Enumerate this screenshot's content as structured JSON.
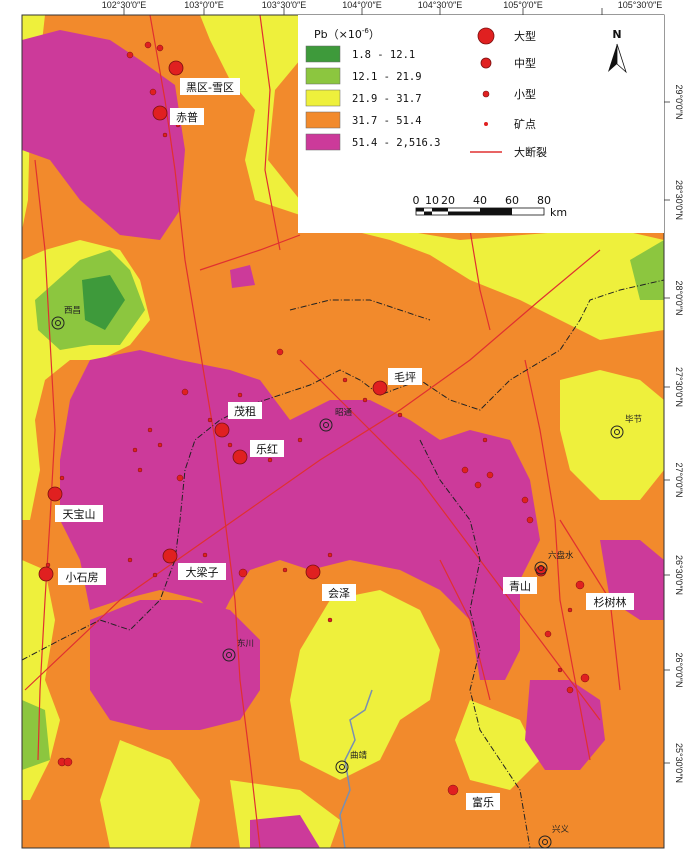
{
  "colors": {
    "class1": "#3e9a3b",
    "class2": "#8cc63f",
    "class3": "#eef03c",
    "class4": "#f28a2c",
    "class5": "#cc3a9a",
    "deposit": "#e02020",
    "fault": "#e03030",
    "river": "#7a8fb0",
    "border": "#222222"
  },
  "top_coords": [
    "102°30′0″E",
    "103°0′0″E",
    "103°30′0″E",
    "104°0′0″E",
    "104°30′0″E",
    "105°0′0″E",
    "105°30′0″E"
  ],
  "right_coords": [
    "29°0′0″N",
    "28°30′0″N",
    "28°0′0″N",
    "27°30′0″N",
    "27°0′0″N",
    "26°30′0″N",
    "26°0′0″N",
    "25°30′0″N"
  ],
  "legend": {
    "title": "Pb（×10",
    "title_exp": "-6",
    "title_end": "）",
    "classes": [
      "1.8 - 12.1",
      "12.1 - 21.9",
      "21.9 - 31.7",
      "31.7 - 51.4",
      "51.4 - 2,516.3"
    ],
    "deposits": [
      "大型",
      "中型",
      "小型",
      "矿点"
    ],
    "fault": "大断裂",
    "north": "N",
    "scale_ticks": [
      "0",
      "10",
      "20",
      "40",
      "60",
      "80"
    ],
    "scale_unit": "km"
  },
  "deposit_labels": [
    "黑区-雪区",
    "赤普",
    "茂租",
    "乐红",
    "毛坪",
    "天宝山",
    "小石房",
    "大梁子",
    "会泽",
    "青山",
    "杉树林",
    "富乐"
  ],
  "cities": [
    "西昌",
    "昭通",
    "毕节",
    "六盘水",
    "东川",
    "曲靖",
    "兴义"
  ]
}
